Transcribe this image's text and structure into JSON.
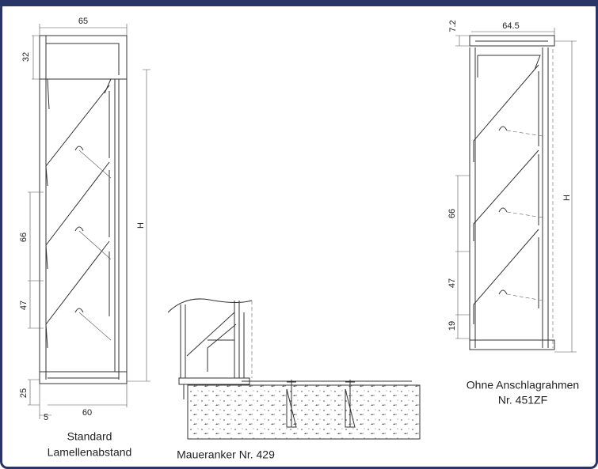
{
  "drawings": [
    {
      "dimensions": [
        "65",
        "32",
        "66",
        "47",
        "25",
        "60",
        "5",
        "H"
      ],
      "caption": [
        "Standard",
        "Lamellenabstand"
      ]
    },
    {
      "caption": [
        "Maueranker Nr. 429"
      ]
    },
    {
      "dimensions": [
        "7.2",
        "64.5",
        "66",
        "47",
        "19",
        "H"
      ],
      "caption": [
        "Ohne Anschlagrahmen",
        "Nr. 451ZF"
      ]
    }
  ]
}
